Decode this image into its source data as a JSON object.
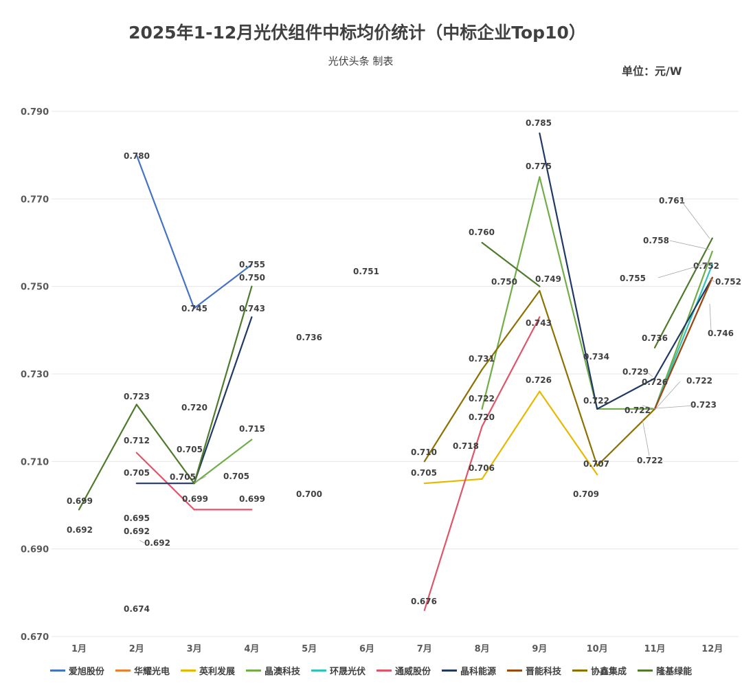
{
  "chart_data": {
    "type": "line",
    "title": "2025年1-12月光伏组件中标均价统计（中标企业Top10）",
    "subtitle": "光伏头条 制表",
    "unit": "单位：元/W",
    "categories": [
      "1月",
      "2月",
      "3月",
      "4月",
      "5月",
      "6月",
      "7月",
      "8月",
      "9月",
      "10月",
      "11月",
      "12月"
    ],
    "ylim": [
      0.67,
      0.79
    ],
    "yticks": [
      "0.670",
      "0.690",
      "0.710",
      "0.730",
      "0.750",
      "0.770",
      "0.790"
    ],
    "grid": true,
    "legend_position": "bottom",
    "series": [
      {
        "name": "爱旭股份",
        "color": "#4472c4",
        "values": [
          null,
          0.78,
          0.745,
          0.755,
          null,
          null,
          null,
          null,
          null,
          null,
          null,
          null
        ]
      },
      {
        "name": "华耀光电",
        "color": "#ed7d31",
        "values": [
          null,
          null,
          null,
          null,
          null,
          null,
          null,
          null,
          null,
          null,
          null,
          null
        ]
      },
      {
        "name": "英利发展",
        "color": "#e8b800",
        "values": [
          null,
          null,
          null,
          null,
          null,
          null,
          0.705,
          0.706,
          0.726,
          0.707,
          null,
          null
        ]
      },
      {
        "name": "晶澳科技",
        "color": "#70ad47",
        "values": [
          null,
          null,
          0.705,
          0.715,
          null,
          null,
          null,
          0.722,
          0.775,
          0.722,
          0.722,
          0.758
        ]
      },
      {
        "name": "环晟光伏",
        "color": "#2ec4bc",
        "values": [
          null,
          null,
          null,
          null,
          null,
          null,
          null,
          null,
          null,
          null,
          0.722,
          0.755
        ]
      },
      {
        "name": "通威股份",
        "color": "#e05468",
        "values": [
          null,
          0.712,
          0.699,
          0.699,
          null,
          null,
          0.676,
          0.718,
          0.743,
          null,
          0.722,
          0.752
        ]
      },
      {
        "name": "晶科能源",
        "color": "#203864",
        "values": [
          null,
          0.705,
          0.705,
          0.743,
          null,
          null,
          null,
          null,
          0.785,
          0.722,
          0.729,
          0.752
        ]
      },
      {
        "name": "晋能科技",
        "color": "#9e480e",
        "values": [
          null,
          null,
          null,
          null,
          null,
          null,
          null,
          null,
          null,
          null,
          0.722,
          0.752
        ]
      },
      {
        "name": "协鑫集成",
        "color": "#8c7000",
        "values": [
          null,
          null,
          null,
          null,
          null,
          null,
          0.71,
          0.731,
          0.749,
          0.709,
          0.722,
          null
        ]
      },
      {
        "name": "隆基绿能",
        "color": "#4e7a2c",
        "values": [
          0.699,
          0.723,
          0.705,
          0.75,
          null,
          null,
          null,
          0.76,
          0.75,
          null,
          0.736,
          0.761
        ]
      }
    ],
    "data_labels": [
      {
        "month": 0,
        "text": "0.699"
      },
      {
        "month": 0,
        "text": "0.692"
      },
      {
        "month": 1,
        "text": "0.780"
      },
      {
        "month": 1,
        "text": "0.723"
      },
      {
        "month": 1,
        "text": "0.712"
      },
      {
        "month": 1,
        "text": "0.705"
      },
      {
        "month": 1,
        "text": "0.695"
      },
      {
        "month": 1,
        "text": "0.692"
      },
      {
        "month": 1,
        "text": "0.692"
      },
      {
        "month": 1,
        "text": "0.674"
      },
      {
        "month": 2,
        "text": "0.745"
      },
      {
        "month": 2,
        "text": "0.720"
      },
      {
        "month": 2,
        "text": "0.705"
      },
      {
        "month": 2,
        "text": "0.705"
      },
      {
        "month": 2,
        "text": "0.705"
      },
      {
        "month": 2,
        "text": "0.699"
      },
      {
        "month": 3,
        "text": "0.755"
      },
      {
        "month": 3,
        "text": "0.750"
      },
      {
        "month": 3,
        "text": "0.743"
      },
      {
        "month": 3,
        "text": "0.715"
      },
      {
        "month": 3,
        "text": "0.699"
      },
      {
        "month": 4,
        "text": "0.736"
      },
      {
        "month": 4,
        "text": "0.700"
      },
      {
        "month": 5,
        "text": "0.751"
      },
      {
        "month": 6,
        "text": "0.710"
      },
      {
        "month": 6,
        "text": "0.705"
      },
      {
        "month": 6,
        "text": "0.676"
      },
      {
        "month": 7,
        "text": "0.760"
      },
      {
        "month": 7,
        "text": "0.731"
      },
      {
        "month": 7,
        "text": "0.722"
      },
      {
        "month": 7,
        "text": "0.720"
      },
      {
        "month": 7,
        "text": "0.718"
      },
      {
        "month": 7,
        "text": "0.706"
      },
      {
        "month": 8,
        "text": "0.785"
      },
      {
        "month": 8,
        "text": "0.775"
      },
      {
        "month": 8,
        "text": "0.750"
      },
      {
        "month": 8,
        "text": "0.749"
      },
      {
        "month": 8,
        "text": "0.743"
      },
      {
        "month": 8,
        "text": "0.726"
      },
      {
        "month": 9,
        "text": "0.734"
      },
      {
        "month": 9,
        "text": "0.722"
      },
      {
        "month": 9,
        "text": "0.707"
      },
      {
        "month": 9,
        "text": "0.709"
      },
      {
        "month": 10,
        "text": "0.755"
      },
      {
        "month": 10,
        "text": "0.736"
      },
      {
        "month": 10,
        "text": "0.729"
      },
      {
        "month": 10,
        "text": "0.726"
      },
      {
        "month": 10,
        "text": "0.722"
      },
      {
        "month": 10,
        "text": "0.722"
      },
      {
        "month": 11,
        "text": "0.761"
      },
      {
        "month": 11,
        "text": "0.758"
      },
      {
        "month": 11,
        "text": "0.752"
      },
      {
        "month": 11,
        "text": "0.752"
      },
      {
        "month": 11,
        "text": "0.746"
      },
      {
        "month": 11,
        "text": "0.722"
      },
      {
        "month": 11,
        "text": "0.723"
      }
    ]
  }
}
